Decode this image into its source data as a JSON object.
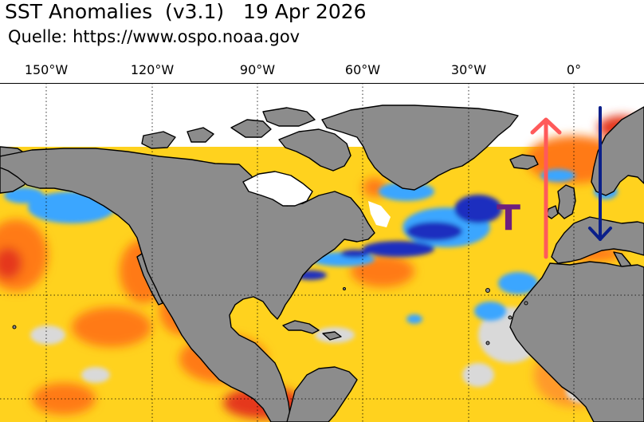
{
  "title": "SST Anomalies  (v3.1)   19 Apr 2026",
  "subtitle": "Quelle: https://www.ospo.noaa.gov",
  "longitude_labels": [
    "150°W",
    "120°W",
    "90°W",
    "60°W",
    "30°W",
    "0°"
  ],
  "annotation_text": "T",
  "colors": {
    "land": "#8c8c8c",
    "ice": "#ffffff",
    "warm": "#ffd21e",
    "hot": "#ff7a14",
    "very_hot": "#e5381b",
    "cold": "#3aa6ff",
    "very_cold": "#1f2fbf",
    "neutral": "#d9d9d9",
    "arrow_up": "#ff5a5a",
    "arrow_down": "#0a1f8a",
    "annotation": "#6e1f7e"
  }
}
